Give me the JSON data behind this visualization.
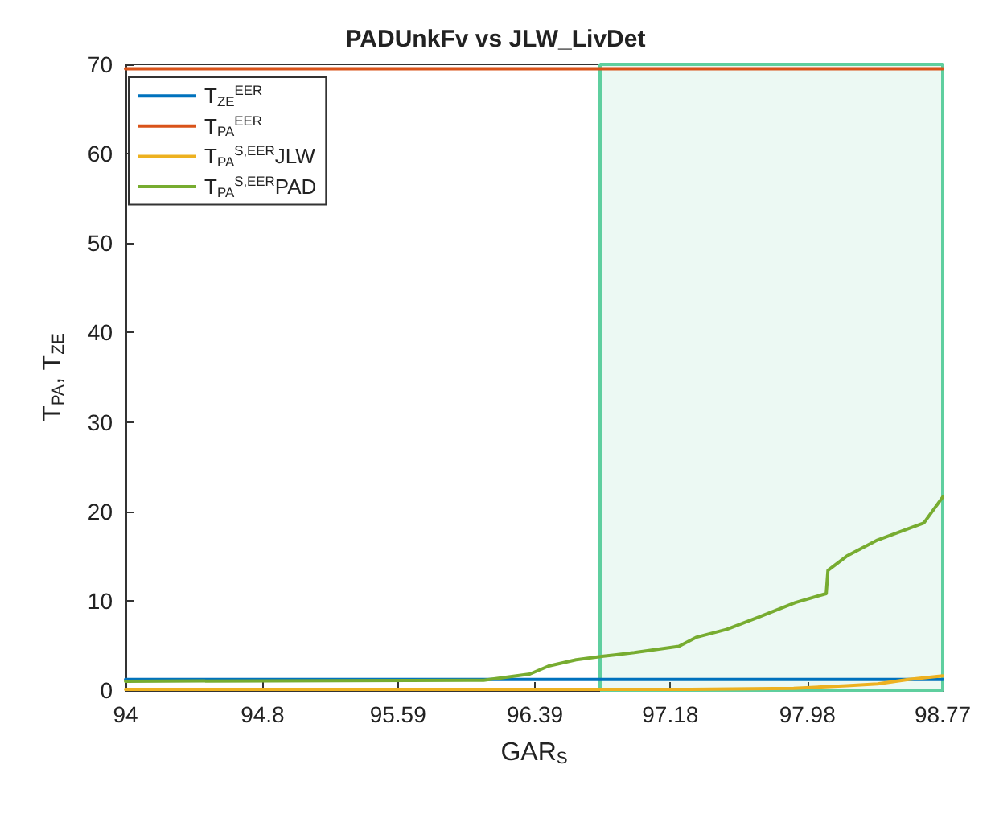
{
  "chart_data": {
    "type": "line",
    "title": "PADUnkFv vs JLW_LivDet",
    "xlabel": "GAR$_{S}$",
    "ylabel": "T$_{PA}$, T$_{ZE}$",
    "xlim": [
      94,
      98.77
    ],
    "xticks": [
      94,
      94.8,
      95.59,
      96.39,
      97.18,
      97.98,
      98.77
    ],
    "ylim": [
      0,
      70
    ],
    "yticks": [
      0,
      10,
      20,
      30,
      40,
      50,
      60,
      70
    ],
    "grid": false,
    "legend": "top left",
    "line_style": "solid",
    "marker": "none",
    "bands": [
      {
        "axis": "x",
        "from": 96.77,
        "to": 98.77,
        "color": "#5fcf9f"
      }
    ],
    "series": [
      {
        "name": "T$_{ZE}$$^{EER}$",
        "color": "#0072bd",
        "x": [
          94,
          98.77
        ],
        "values": [
          1.2,
          1.2
        ]
      },
      {
        "name": "T$_{PA}$$^{EER}$",
        "color": "#d95319",
        "x": [
          94,
          98.77
        ],
        "values": [
          69.5,
          69.5
        ]
      },
      {
        "name": "T$_{PA}$$^{S,EER}$JLW",
        "color": "#edb120",
        "x": [
          94,
          97.3,
          97.9,
          98.21,
          98.39,
          98.57,
          98.77
        ],
        "values": [
          0.1,
          0.1,
          0.2,
          0.5,
          0.7,
          1.2,
          1.6
        ]
      },
      {
        "name": "T$_{PA}$$^{S,EER}$PAD",
        "color": "#77ac30",
        "x": [
          94,
          96.0,
          96.09,
          96.36,
          96.47,
          96.63,
          96.79,
          96.97,
          97.23,
          97.33,
          97.51,
          97.7,
          97.91,
          98.09,
          98.1,
          98.21,
          98.39,
          98.66,
          98.77
        ],
        "values": [
          1.0,
          1.1,
          1.1,
          1.8,
          2.7,
          3.4,
          3.8,
          4.2,
          4.9,
          5.9,
          6.8,
          8.2,
          9.8,
          10.8,
          13.4,
          15.0,
          16.8,
          18.7,
          21.6
        ]
      }
    ]
  }
}
